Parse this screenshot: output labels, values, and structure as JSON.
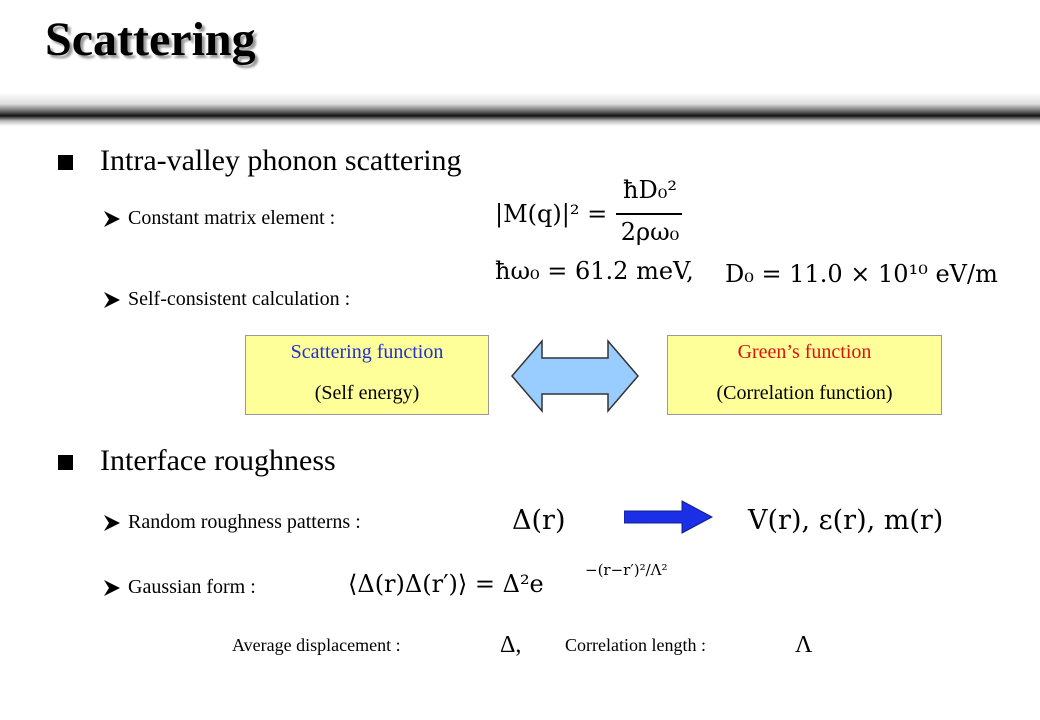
{
  "title": "Scattering",
  "section1": {
    "heading": "Intra-valley phonon scattering",
    "items": [
      "Constant matrix element :",
      "Self-consistent calculation :"
    ]
  },
  "eq_matrix": {
    "lhs": "|M(q)|² =",
    "numerator": "ħD₀²",
    "denominator": "2ρω₀"
  },
  "eq_params": [
    "ħω₀ = 61.2 meV,",
    "D₀ = 11.0 × 10¹⁰ eV/m"
  ],
  "boxes": [
    {
      "line1": "Scattering function",
      "line2": "(Self energy)"
    },
    {
      "line1": "Green’s function",
      "line2": "(Correlation function)"
    }
  ],
  "section2": {
    "heading": "Interface roughness",
    "items": [
      "Random roughness patterns :",
      "Gaussian form :"
    ]
  },
  "eq_random": {
    "lhs": "Δ(r)",
    "rhs": "V(r), ε(r), m(r)"
  },
  "eq_gauss": {
    "main": "⟨Δ(r)Δ(r′)⟩ = Δ²e",
    "exponent": "−(r−r′)²/Λ²"
  },
  "footer": {
    "avg_label": "Average displacement :",
    "avg_symbol": "Δ,",
    "corr_label": "Correlation length :",
    "corr_symbol": "Λ"
  }
}
